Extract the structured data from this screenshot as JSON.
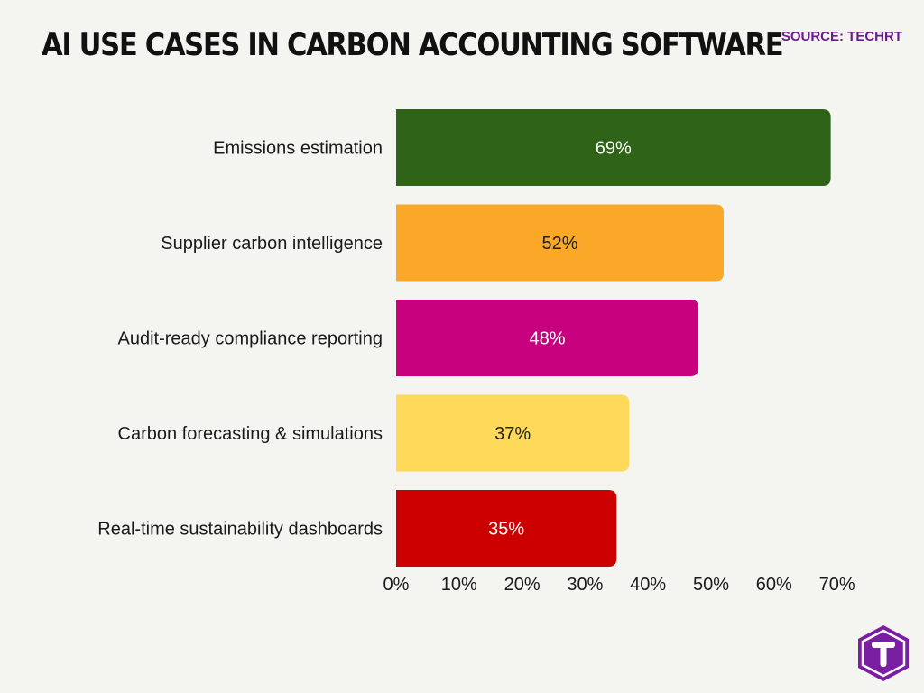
{
  "header": {
    "title": "AI USE CASES IN CARBON ACCOUNTING SOFTWARE",
    "source": "SOURCE: TECHRT"
  },
  "colors": {
    "background": "#f4f4f1",
    "brand": "#6b1a8f"
  },
  "logo": {
    "icon": "techrt-logo-icon",
    "letter": "T"
  },
  "chart_data": {
    "type": "bar",
    "orientation": "horizontal",
    "categories": [
      "Emissions estimation",
      "Supplier carbon intelligence",
      "Audit-ready compliance reporting",
      "Carbon forecasting & simulations",
      "Real-time sustainability dashboards"
    ],
    "values": [
      69,
      52,
      48,
      37,
      35
    ],
    "data_labels": [
      "69%",
      "52%",
      "48%",
      "37%",
      "35%"
    ],
    "bar_colors": [
      "#2e6318",
      "#fba828",
      "#c8027e",
      "#ffda5a",
      "#cc0000"
    ],
    "label_colors": [
      "#ffffff",
      "#222222",
      "#ffffff",
      "#222222",
      "#ffffff"
    ],
    "xlim": [
      0,
      70
    ],
    "x_ticks": [
      0,
      10,
      20,
      30,
      40,
      50,
      60,
      70
    ],
    "x_tick_labels": [
      "0%",
      "10%",
      "20%",
      "30%",
      "40%",
      "50%",
      "60%",
      "70%"
    ],
    "grid": false,
    "legend": "none"
  }
}
